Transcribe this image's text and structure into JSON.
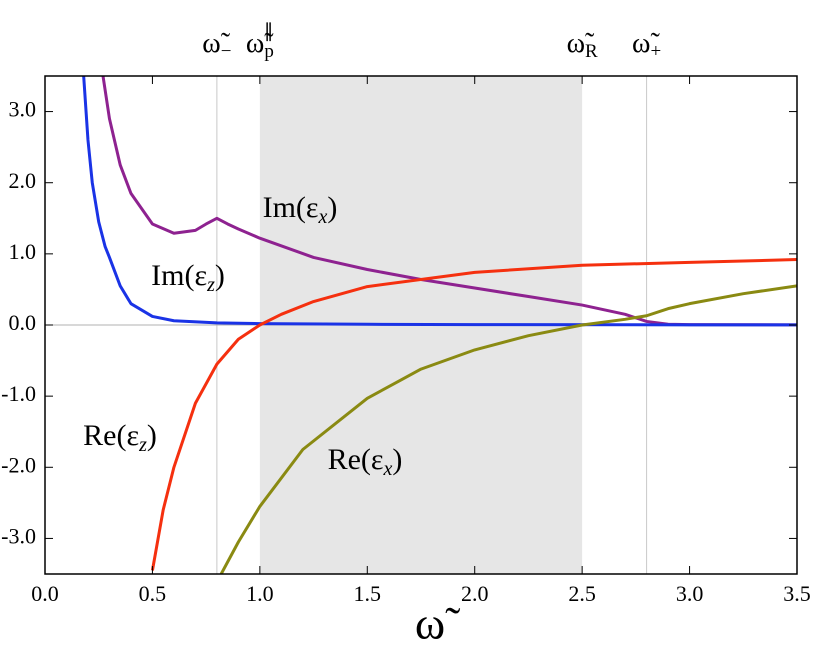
{
  "chart_data": {
    "type": "line",
    "x_label": "ω̃",
    "xlim": [
      0,
      3.5
    ],
    "ylim": [
      -3.5,
      3.5
    ],
    "xticks": [
      {
        "value": 0,
        "label": "0.0"
      },
      {
        "value": 0.5,
        "label": "0.5"
      },
      {
        "value": 1,
        "label": "1.0"
      },
      {
        "value": 1.5,
        "label": "1.5"
      },
      {
        "value": 2,
        "label": "2.0"
      },
      {
        "value": 2.5,
        "label": "2.5"
      },
      {
        "value": 3,
        "label": "3.0"
      },
      {
        "value": 3.5,
        "label": "3.5"
      }
    ],
    "yticks": [
      {
        "value": -3,
        "label": "-3.0"
      },
      {
        "value": -2,
        "label": "-2.0"
      },
      {
        "value": -1,
        "label": "-1.0"
      },
      {
        "value": 0,
        "label": "0.0"
      },
      {
        "value": 1,
        "label": "1.0"
      },
      {
        "value": 2,
        "label": "2.0"
      },
      {
        "value": 3,
        "label": "3.0"
      }
    ],
    "hlines": [
      0
    ],
    "markers": [
      {
        "base": "ω̃",
        "sub": "−",
        "sup": null,
        "value": 0.8,
        "style": "line"
      },
      {
        "base": "ω̃",
        "sub": "p",
        "sup": "∥",
        "value": 1.0,
        "style": "shade-start"
      },
      {
        "base": "ω̃",
        "sub": "R",
        "sup": null,
        "value": 2.5,
        "style": "shade-end"
      },
      {
        "base": "ω̃",
        "sub": "+",
        "sup": null,
        "value": 2.8,
        "style": "line"
      }
    ],
    "series": [
      {
        "name": {
          "main": "Im(ε",
          "sub": "x",
          "tail": ")"
        },
        "color": "#8e2290",
        "x": [
          0.27,
          0.3,
          0.35,
          0.4,
          0.5,
          0.6,
          0.7,
          0.75,
          0.8,
          0.85,
          0.9,
          1.0,
          1.25,
          1.5,
          1.75,
          2.0,
          2.25,
          2.5,
          2.7,
          2.8,
          2.9,
          3.0,
          3.5
        ],
        "values": [
          3.5,
          2.9,
          2.25,
          1.85,
          1.42,
          1.29,
          1.33,
          1.42,
          1.5,
          1.42,
          1.35,
          1.22,
          0.95,
          0.78,
          0.64,
          0.52,
          0.4,
          0.28,
          0.15,
          0.05,
          0.01,
          0.005,
          0.002
        ]
      },
      {
        "name": {
          "main": "Im(ε",
          "sub": "z",
          "tail": ")"
        },
        "color": "#1a33e6",
        "x": [
          0.18,
          0.2,
          0.22,
          0.25,
          0.28,
          0.3,
          0.35,
          0.4,
          0.5,
          0.6,
          0.8,
          1.0,
          1.5,
          2.0,
          3.0,
          3.5
        ],
        "values": [
          3.5,
          2.6,
          2.0,
          1.45,
          1.1,
          0.95,
          0.55,
          0.3,
          0.12,
          0.06,
          0.03,
          0.02,
          0.01,
          0.005,
          0.002,
          0.001
        ]
      },
      {
        "name": {
          "main": "Re(ε",
          "sub": "z",
          "tail": ")"
        },
        "color": "#f5300f",
        "x": [
          0.5,
          0.55,
          0.6,
          0.7,
          0.8,
          0.9,
          1.0,
          1.1,
          1.25,
          1.5,
          2.0,
          2.5,
          3.0,
          3.5
        ],
        "values": [
          -3.45,
          -2.6,
          -2.0,
          -1.1,
          -0.55,
          -0.2,
          0.0,
          0.15,
          0.33,
          0.54,
          0.74,
          0.84,
          0.88,
          0.92
        ]
      },
      {
        "name": {
          "main": "Re(ε",
          "sub": "x",
          "tail": ")"
        },
        "color": "#8a8a12",
        "x": [
          0.82,
          0.9,
          1.0,
          1.2,
          1.5,
          1.75,
          2.0,
          2.25,
          2.5,
          2.7,
          2.8,
          2.9,
          3.0,
          3.25,
          3.5
        ],
        "values": [
          -3.5,
          -3.05,
          -2.55,
          -1.75,
          -1.03,
          -0.62,
          -0.35,
          -0.15,
          0.0,
          0.08,
          0.13,
          0.23,
          0.3,
          0.44,
          0.55
        ]
      }
    ]
  }
}
